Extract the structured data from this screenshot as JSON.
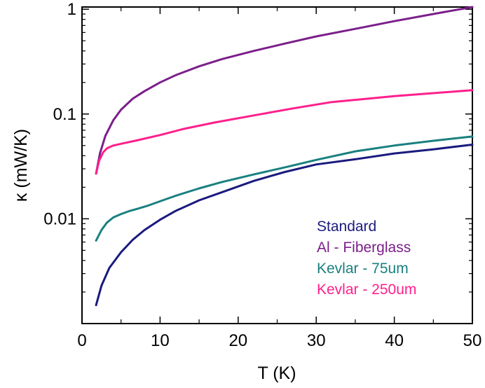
{
  "chart_data": {
    "type": "line",
    "xlabel": "T (K)",
    "ylabel": "κ (mW/K)",
    "xlim": [
      0,
      50
    ],
    "ylim": [
      0.001,
      1.05
    ],
    "yscale": "log",
    "grid": false,
    "legend_position": "bottom-right",
    "x_ticks": [
      "0",
      "10",
      "20",
      "30",
      "40",
      "50"
    ],
    "y_ticks": [
      {
        "value": 1,
        "label": "1"
      },
      {
        "value": 0.1,
        "label": "0.1"
      },
      {
        "value": 0.01,
        "label": "0.01"
      }
    ],
    "series": [
      {
        "name": "Standard",
        "color": "#1a1a7e",
        "x": [
          1.8,
          2.5,
          3.5,
          5,
          6.5,
          8,
          10,
          12,
          15,
          18,
          22,
          26,
          30,
          35,
          40,
          45,
          50
        ],
        "y": [
          0.0015,
          0.0023,
          0.0034,
          0.0048,
          0.0063,
          0.0078,
          0.0098,
          0.0119,
          0.015,
          0.018,
          0.023,
          0.028,
          0.033,
          0.037,
          0.042,
          0.046,
          0.051
        ]
      },
      {
        "name": "Al - Fiberglass",
        "color": "#7b1f8a",
        "x": [
          1.8,
          2.3,
          3,
          4,
          5,
          6.5,
          8,
          10,
          12,
          15,
          18,
          22,
          26,
          30,
          35,
          40,
          45,
          50
        ],
        "y": [
          0.027,
          0.042,
          0.062,
          0.087,
          0.11,
          0.14,
          0.165,
          0.2,
          0.235,
          0.285,
          0.335,
          0.4,
          0.47,
          0.55,
          0.65,
          0.77,
          0.9,
          1.05
        ]
      },
      {
        "name": "Kevlar - 75um",
        "color": "#1a8080",
        "x": [
          1.8,
          2.5,
          3.2,
          4,
          5,
          6,
          7,
          8.5,
          10,
          12,
          15,
          18,
          22,
          26,
          30,
          35,
          40,
          45,
          50
        ],
        "y": [
          0.0062,
          0.0078,
          0.0092,
          0.0103,
          0.0111,
          0.0118,
          0.0124,
          0.0134,
          0.0147,
          0.0166,
          0.0195,
          0.0225,
          0.0265,
          0.031,
          0.0365,
          0.044,
          0.05,
          0.0555,
          0.061
        ]
      },
      {
        "name": "Kevlar - 250um",
        "color": "#ff1f8c",
        "x": [
          1.8,
          2.2,
          2.7,
          3.2,
          4,
          5,
          7,
          10,
          13,
          17,
          22,
          27,
          32,
          40,
          50
        ],
        "y": [
          0.027,
          0.036,
          0.043,
          0.047,
          0.05,
          0.052,
          0.056,
          0.063,
          0.072,
          0.083,
          0.097,
          0.113,
          0.13,
          0.148,
          0.169
        ]
      }
    ]
  }
}
